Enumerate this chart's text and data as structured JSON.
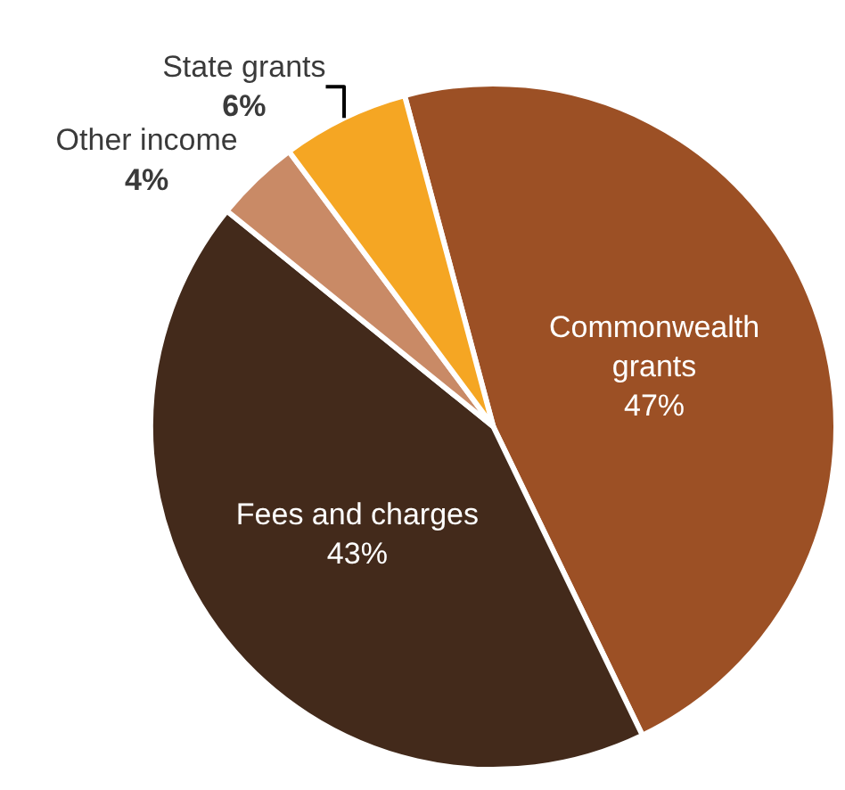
{
  "chart_data": {
    "type": "pie",
    "categories": [
      "Commonwealth grants",
      "Fees and charges",
      "Other income",
      "State grants"
    ],
    "values": [
      47,
      43,
      4,
      6
    ],
    "value_labels": [
      "47%",
      "43%",
      "4%",
      "6%"
    ],
    "colors": [
      "#9c5025",
      "#432a1b",
      "#c98a66",
      "#f5a623"
    ],
    "legend": false
  }
}
